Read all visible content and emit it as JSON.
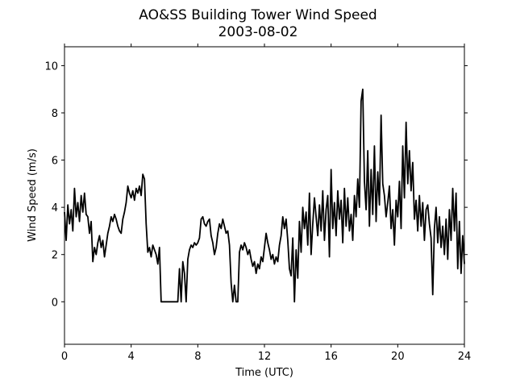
{
  "chart_data": {
    "type": "line",
    "title": "AO&SS Building Tower Wind Speed",
    "subtitle": "2003-08-02",
    "xlabel": "Time (UTC)",
    "ylabel": "Wind Speed (m/s)",
    "xlim": [
      0,
      24
    ],
    "xticks": [
      0,
      4,
      8,
      12,
      16,
      20,
      24
    ],
    "ylim": [
      -1.8,
      10.8
    ],
    "yticks": [
      0,
      2,
      4,
      6,
      8,
      10
    ],
    "grid": false,
    "series": [
      {
        "name": "Wind Speed",
        "color": "#000000",
        "x": [
          0.0,
          0.1,
          0.2,
          0.3,
          0.4,
          0.5,
          0.6,
          0.7,
          0.8,
          0.9,
          1.0,
          1.1,
          1.2,
          1.3,
          1.4,
          1.5,
          1.6,
          1.7,
          1.8,
          1.9,
          2.0,
          2.1,
          2.2,
          2.3,
          2.4,
          2.5,
          2.6,
          2.7,
          2.8,
          2.9,
          3.0,
          3.1,
          3.2,
          3.3,
          3.4,
          3.5,
          3.6,
          3.7,
          3.8,
          3.9,
          4.0,
          4.1,
          4.2,
          4.3,
          4.4,
          4.5,
          4.6,
          4.7,
          4.8,
          4.9,
          5.0,
          5.1,
          5.2,
          5.3,
          5.4,
          5.5,
          5.6,
          5.7,
          5.8,
          5.9,
          6.0,
          6.1,
          6.2,
          6.3,
          6.4,
          6.5,
          6.6,
          6.7,
          6.8,
          6.9,
          7.0,
          7.1,
          7.2,
          7.3,
          7.4,
          7.5,
          7.6,
          7.7,
          7.8,
          7.9,
          8.0,
          8.1,
          8.2,
          8.3,
          8.4,
          8.5,
          8.6,
          8.7,
          8.8,
          8.9,
          9.0,
          9.1,
          9.2,
          9.3,
          9.4,
          9.5,
          9.6,
          9.7,
          9.8,
          9.9,
          10.0,
          10.1,
          10.2,
          10.3,
          10.4,
          10.5,
          10.6,
          10.7,
          10.8,
          10.9,
          11.0,
          11.1,
          11.2,
          11.3,
          11.4,
          11.5,
          11.6,
          11.7,
          11.8,
          11.9,
          12.0,
          12.1,
          12.2,
          12.3,
          12.4,
          12.5,
          12.6,
          12.7,
          12.8,
          12.9,
          13.0,
          13.1,
          13.2,
          13.3,
          13.4,
          13.5,
          13.6,
          13.7,
          13.8,
          13.9,
          14.0,
          14.1,
          14.2,
          14.3,
          14.4,
          14.5,
          14.6,
          14.7,
          14.8,
          14.9,
          15.0,
          15.1,
          15.2,
          15.3,
          15.4,
          15.5,
          15.6,
          15.7,
          15.8,
          15.9,
          16.0,
          16.1,
          16.2,
          16.3,
          16.4,
          16.5,
          16.6,
          16.7,
          16.8,
          16.9,
          17.0,
          17.1,
          17.2,
          17.3,
          17.4,
          17.5,
          17.6,
          17.7,
          17.8,
          17.9,
          18.0,
          18.1,
          18.2,
          18.3,
          18.4,
          18.5,
          18.6,
          18.7,
          18.8,
          18.9,
          19.0,
          19.1,
          19.2,
          19.3,
          19.4,
          19.5,
          19.6,
          19.7,
          19.8,
          19.9,
          20.0,
          20.1,
          20.2,
          20.3,
          20.4,
          20.5,
          20.6,
          20.7,
          20.8,
          20.9,
          21.0,
          21.1,
          21.2,
          21.3,
          21.4,
          21.5,
          21.6,
          21.7,
          21.8,
          21.9,
          22.0,
          22.1,
          22.2,
          22.3,
          22.4,
          22.5,
          22.6,
          22.7,
          22.8,
          22.9,
          23.0,
          23.1,
          23.2,
          23.3,
          23.4,
          23.5,
          23.6,
          23.7,
          23.8,
          23.9,
          24.0
        ],
        "values": [
          3.8,
          2.6,
          4.1,
          3.3,
          3.9,
          3.0,
          4.8,
          3.6,
          4.2,
          3.4,
          4.5,
          3.8,
          4.6,
          3.7,
          3.6,
          2.9,
          3.4,
          1.7,
          2.3,
          2.0,
          2.5,
          2.8,
          2.3,
          2.6,
          1.9,
          2.4,
          2.9,
          3.2,
          3.6,
          3.4,
          3.7,
          3.5,
          3.2,
          3.0,
          2.9,
          3.5,
          3.8,
          4.2,
          4.9,
          4.6,
          4.4,
          4.7,
          4.3,
          4.8,
          4.6,
          4.9,
          4.5,
          5.4,
          5.2,
          3.3,
          2.1,
          2.3,
          1.9,
          2.4,
          2.2,
          2.0,
          1.6,
          2.3,
          0.0,
          0.0,
          0.0,
          0.0,
          0.0,
          0.0,
          0.0,
          0.0,
          0.0,
          0.0,
          0.0,
          1.4,
          0.0,
          1.7,
          1.2,
          0.0,
          1.8,
          2.2,
          2.4,
          2.3,
          2.5,
          2.4,
          2.5,
          2.7,
          3.5,
          3.6,
          3.3,
          3.2,
          3.4,
          3.5,
          2.8,
          2.5,
          2.0,
          2.3,
          2.9,
          3.3,
          3.1,
          3.5,
          3.2,
          2.9,
          3.0,
          2.4,
          0.8,
          0.0,
          0.7,
          0.0,
          0.0,
          2.1,
          2.4,
          2.2,
          2.5,
          2.3,
          2.0,
          2.2,
          1.8,
          1.5,
          1.7,
          1.2,
          1.6,
          1.4,
          1.9,
          1.7,
          2.3,
          2.9,
          2.5,
          2.2,
          1.8,
          2.0,
          1.6,
          1.9,
          1.7,
          2.4,
          2.8,
          3.6,
          3.1,
          3.5,
          2.6,
          1.4,
          1.1,
          2.7,
          0.0,
          2.2,
          1.0,
          3.4,
          2.1,
          4.0,
          3.1,
          3.8,
          2.4,
          4.6,
          2.0,
          3.3,
          4.4,
          3.6,
          2.8,
          4.1,
          3.0,
          4.7,
          2.6,
          3.9,
          4.5,
          1.9,
          5.6,
          3.1,
          4.2,
          2.8,
          4.7,
          3.5,
          4.3,
          2.5,
          4.8,
          3.2,
          4.4,
          3.0,
          3.7,
          2.6,
          4.5,
          3.6,
          5.2,
          4.0,
          8.5,
          9.0,
          5.1,
          3.9,
          6.4,
          3.2,
          5.6,
          3.7,
          6.6,
          3.4,
          5.5,
          4.1,
          7.9,
          5.0,
          4.5,
          3.6,
          4.2,
          4.9,
          3.1,
          3.9,
          2.4,
          4.3,
          3.6,
          5.1,
          3.1,
          6.6,
          4.4,
          7.6,
          5.0,
          6.4,
          4.7,
          5.9,
          3.5,
          4.3,
          3.0,
          4.5,
          3.2,
          4.2,
          2.6,
          3.9,
          4.1,
          3.3,
          2.7,
          0.3,
          3.1,
          4.0,
          2.5,
          3.6,
          2.3,
          3.2,
          2.0,
          3.5,
          1.8,
          3.9,
          2.6,
          4.8,
          3.0,
          4.6,
          1.4,
          3.4,
          1.2,
          2.8,
          1.6
        ]
      }
    ]
  }
}
